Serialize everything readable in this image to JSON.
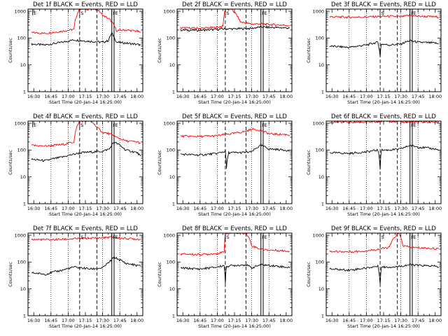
{
  "colors": {
    "events": "#000000",
    "lld": "#ff0000",
    "background": "#ffffff"
  },
  "axis_common": {
    "xlabel": "Start Time (20-Jan-14 16:25:00)",
    "ylabel": "Counts/sec",
    "xticks": [
      "16:30",
      "16:45",
      "17:00",
      "17:15",
      "17:30",
      "17:45",
      "18:00"
    ],
    "yticks": [
      "1",
      "10",
      "100",
      "1000"
    ],
    "yscale": "log",
    "ylim": [
      1,
      1200
    ],
    "dotted_lines_at": [
      "16:45",
      "17:00",
      "17:30",
      "17:45"
    ]
  },
  "chart_data": [
    {
      "type": "line",
      "title": "Det 1f BLACK = Events, RED = LLD",
      "markers": [
        {
          "time": "16:29",
          "type": "E"
        },
        {
          "time": "17:10",
          "type": "S"
        },
        {
          "time": "17:38",
          "type": "F"
        },
        {
          "time": "17:40",
          "type": "E"
        }
      ],
      "dashed_lines_at": [
        "17:10",
        "17:25"
      ],
      "solid_lines_at": [
        "17:38",
        "17:40"
      ],
      "series": [
        {
          "name": "Events",
          "color": "#000000",
          "x": [
            "16:28",
            "16:40",
            "16:55",
            "17:05",
            "17:12",
            "17:20",
            "17:30",
            "17:35",
            "17:38",
            "17:42",
            "17:50",
            "18:00",
            "18:03"
          ],
          "values": [
            60,
            55,
            70,
            85,
            80,
            75,
            70,
            80,
            150,
            70,
            65,
            58,
            55
          ]
        },
        {
          "name": "LLD",
          "color": "#ff0000",
          "x": [
            "16:28",
            "16:40",
            "16:55",
            "17:05",
            "17:10",
            "17:12",
            "17:20",
            "17:25",
            "17:30",
            "17:36",
            "17:42",
            "17:50",
            "18:00",
            "18:03"
          ],
          "values": [
            160,
            150,
            180,
            210,
            1200,
            1200,
            1200,
            1200,
            700,
            500,
            190,
            200,
            180,
            160
          ]
        }
      ]
    },
    {
      "type": "line",
      "title": "Det 2f BLACK = Events, RED = LLD",
      "markers": [
        {
          "time": "17:07",
          "type": "S"
        },
        {
          "time": "17:38",
          "type": "F"
        },
        {
          "time": "17:40",
          "type": "E"
        }
      ],
      "dashed_lines_at": [
        "17:07",
        "17:25"
      ],
      "solid_lines_at": [
        "17:38",
        "17:40"
      ],
      "series": [
        {
          "name": "Events",
          "color": "#000000",
          "x": [
            "16:28",
            "16:45",
            "17:00",
            "17:05",
            "17:15",
            "17:30",
            "17:38",
            "17:45",
            "18:00",
            "18:03"
          ],
          "values": [
            200,
            195,
            210,
            220,
            220,
            230,
            260,
            250,
            240,
            235
          ]
        },
        {
          "name": "LLD",
          "color": "#ff0000",
          "x": [
            "16:28",
            "16:45",
            "17:00",
            "17:05",
            "17:07",
            "17:12",
            "17:15",
            "17:20",
            "17:30",
            "17:38",
            "17:45",
            "18:00",
            "18:03"
          ],
          "values": [
            240,
            230,
            250,
            280,
            1200,
            1200,
            900,
            400,
            330,
            340,
            320,
            300,
            290
          ]
        }
      ]
    },
    {
      "type": "line",
      "title": "Det 3f BLACK = Events, RED = LLD",
      "markers": [
        {
          "time": "17:12",
          "type": "S"
        },
        {
          "time": "17:38",
          "type": "F"
        },
        {
          "time": "17:40",
          "type": "E"
        }
      ],
      "dashed_lines_at": [
        "17:12",
        "17:27"
      ],
      "solid_lines_at": [
        "17:38",
        "17:40"
      ],
      "series": [
        {
          "name": "Events",
          "color": "#000000",
          "x": [
            "16:28",
            "16:45",
            "17:00",
            "17:10",
            "17:12",
            "17:13",
            "17:20",
            "17:30",
            "17:38",
            "17:45",
            "18:00",
            "18:03"
          ],
          "values": [
            50,
            45,
            55,
            70,
            20,
            60,
            55,
            60,
            80,
            70,
            65,
            60
          ]
        },
        {
          "name": "LLD",
          "color": "#ff0000",
          "x": [
            "16:28",
            "16:45",
            "17:00",
            "17:12",
            "17:20",
            "17:30",
            "17:38",
            "17:45",
            "18:00",
            "18:03"
          ],
          "values": [
            620,
            600,
            610,
            640,
            650,
            620,
            700,
            650,
            620,
            600
          ]
        }
      ]
    },
    {
      "type": "line",
      "title": "Det 4f BLACK = Events, RED = LLD",
      "markers": [
        {
          "time": "16:29",
          "type": "E"
        },
        {
          "time": "17:10",
          "type": "S"
        },
        {
          "time": "17:38",
          "type": "F"
        },
        {
          "time": "17:40",
          "type": "E"
        }
      ],
      "dashed_lines_at": [
        "17:10",
        "17:25"
      ],
      "solid_lines_at": [
        "17:38",
        "17:40"
      ],
      "series": [
        {
          "name": "Events",
          "color": "#000000",
          "x": [
            "16:28",
            "16:40",
            "16:55",
            "17:05",
            "17:12",
            "17:20",
            "17:30",
            "17:36",
            "17:40",
            "17:50",
            "18:00",
            "18:03"
          ],
          "values": [
            45,
            40,
            55,
            70,
            80,
            85,
            90,
            110,
            200,
            100,
            80,
            60
          ]
        },
        {
          "name": "LLD",
          "color": "#ff0000",
          "x": [
            "16:28",
            "16:40",
            "16:55",
            "17:05",
            "17:10",
            "17:15",
            "17:20",
            "17:25",
            "17:30",
            "17:36",
            "17:42",
            "17:50",
            "18:00",
            "18:03"
          ],
          "values": [
            150,
            140,
            160,
            200,
            1200,
            1200,
            1200,
            700,
            450,
            400,
            300,
            220,
            200,
            180
          ]
        }
      ]
    },
    {
      "type": "line",
      "title": "Det 5f BLACK = Events, RED = LLD",
      "markers": [
        {
          "time": "17:38",
          "type": "F"
        },
        {
          "time": "17:40",
          "type": "E"
        }
      ],
      "dashed_lines_at": [
        "17:07",
        "17:25"
      ],
      "solid_lines_at": [
        "17:38",
        "17:40"
      ],
      "series": [
        {
          "name": "Events",
          "color": "#000000",
          "x": [
            "16:28",
            "16:45",
            "17:00",
            "17:07",
            "17:08",
            "17:10",
            "17:20",
            "17:30",
            "17:38",
            "17:45",
            "18:00",
            "18:03"
          ],
          "values": [
            70,
            65,
            75,
            90,
            20,
            80,
            80,
            85,
            150,
            110,
            100,
            90
          ]
        },
        {
          "name": "LLD",
          "color": "#ff0000",
          "x": [
            "16:28",
            "16:45",
            "17:00",
            "17:07",
            "17:15",
            "17:25",
            "17:30",
            "17:38",
            "17:45",
            "18:00",
            "18:03"
          ],
          "values": [
            330,
            320,
            340,
            380,
            420,
            500,
            600,
            550,
            400,
            380,
            360
          ]
        }
      ]
    },
    {
      "type": "line",
      "title": "Det 6f BLACK = Events, RED = LLD",
      "markers": [
        {
          "time": "17:38",
          "type": "F"
        },
        {
          "time": "17:40",
          "type": "E"
        }
      ],
      "dashed_lines_at": [
        "17:12",
        "17:27"
      ],
      "solid_lines_at": [
        "17:38",
        "17:40"
      ],
      "series": [
        {
          "name": "Events",
          "color": "#000000",
          "x": [
            "16:28",
            "16:45",
            "17:00",
            "17:10",
            "17:12",
            "17:13",
            "17:20",
            "17:30",
            "17:38",
            "17:45",
            "18:00",
            "18:03"
          ],
          "values": [
            80,
            75,
            85,
            100,
            20,
            100,
            100,
            110,
            150,
            130,
            110,
            100
          ]
        },
        {
          "name": "LLD",
          "color": "#ff0000",
          "x": [
            "16:28",
            "16:45",
            "17:00",
            "17:10",
            "17:14",
            "17:20",
            "17:25",
            "17:30",
            "17:45",
            "18:00",
            "18:03"
          ],
          "values": [
            1100,
            1100,
            1100,
            1100,
            1200,
            1200,
            1200,
            1100,
            1100,
            1100,
            1050
          ]
        }
      ]
    },
    {
      "type": "line",
      "title": "Det 7f BLACK = Events, RED = LLD",
      "markers": [
        {
          "time": "17:10",
          "type": "S"
        },
        {
          "time": "17:38",
          "type": "F"
        },
        {
          "time": "17:40",
          "type": "E"
        }
      ],
      "dashed_lines_at": [
        "17:10",
        "17:25"
      ],
      "solid_lines_at": [
        "17:38",
        "17:40"
      ],
      "series": [
        {
          "name": "Events",
          "color": "#000000",
          "x": [
            "16:28",
            "16:40",
            "16:55",
            "17:05",
            "17:12",
            "17:20",
            "17:30",
            "17:36",
            "17:40",
            "17:50",
            "18:00",
            "18:03"
          ],
          "values": [
            40,
            35,
            50,
            65,
            60,
            55,
            60,
            100,
            150,
            90,
            75,
            70
          ]
        },
        {
          "name": "LLD",
          "color": "#ff0000",
          "x": [
            "16:28",
            "16:45",
            "17:00",
            "17:10",
            "17:20",
            "17:30",
            "17:38",
            "17:45",
            "18:00",
            "18:03"
          ],
          "values": [
            700,
            680,
            720,
            750,
            780,
            800,
            850,
            780,
            720,
            700
          ]
        }
      ]
    },
    {
      "type": "line",
      "title": "Det 8f BLACK = Events, RED = LLD",
      "markers": [
        {
          "time": "17:07",
          "type": "S"
        },
        {
          "time": "17:38",
          "type": "F"
        },
        {
          "time": "17:40",
          "type": "E"
        }
      ],
      "dashed_lines_at": [
        "17:07",
        "17:25"
      ],
      "solid_lines_at": [
        "17:38",
        "17:40"
      ],
      "series": [
        {
          "name": "Events",
          "color": "#000000",
          "x": [
            "16:28",
            "16:45",
            "17:00",
            "17:06",
            "17:07",
            "17:08",
            "17:15",
            "17:25",
            "17:30",
            "17:38",
            "17:45",
            "18:00",
            "18:03"
          ],
          "values": [
            60,
            55,
            65,
            75,
            15,
            70,
            75,
            80,
            60,
            80,
            75,
            65,
            60
          ]
        },
        {
          "name": "LLD",
          "color": "#ff0000",
          "x": [
            "16:28",
            "16:45",
            "17:00",
            "17:06",
            "17:07",
            "17:15",
            "17:25",
            "17:30",
            "17:38",
            "17:45",
            "18:00",
            "18:03"
          ],
          "values": [
            200,
            190,
            210,
            230,
            1200,
            1200,
            1200,
            400,
            300,
            280,
            260,
            250
          ]
        }
      ]
    },
    {
      "type": "line",
      "title": "Det 9f BLACK = Events, RED = LLD",
      "markers": [
        {
          "time": "17:12",
          "type": "S"
        },
        {
          "time": "17:38",
          "type": "F"
        },
        {
          "time": "17:40",
          "type": "E"
        }
      ],
      "dashed_lines_at": [
        "17:12",
        "17:27"
      ],
      "solid_lines_at": [
        "17:38",
        "17:40"
      ],
      "series": [
        {
          "name": "Events",
          "color": "#000000",
          "x": [
            "16:28",
            "16:45",
            "17:00",
            "17:10",
            "17:12",
            "17:13",
            "17:20",
            "17:30",
            "17:38",
            "17:45",
            "18:00",
            "18:03"
          ],
          "values": [
            55,
            50,
            60,
            70,
            15,
            65,
            65,
            70,
            80,
            75,
            70,
            65
          ]
        },
        {
          "name": "LLD",
          "color": "#ff0000",
          "x": [
            "16:28",
            "16:45",
            "17:00",
            "17:10",
            "17:20",
            "17:28",
            "17:32",
            "17:38",
            "17:45",
            "18:00",
            "18:03"
          ],
          "values": [
            250,
            240,
            260,
            300,
            350,
            1200,
            400,
            360,
            340,
            320,
            310
          ]
        }
      ]
    }
  ]
}
